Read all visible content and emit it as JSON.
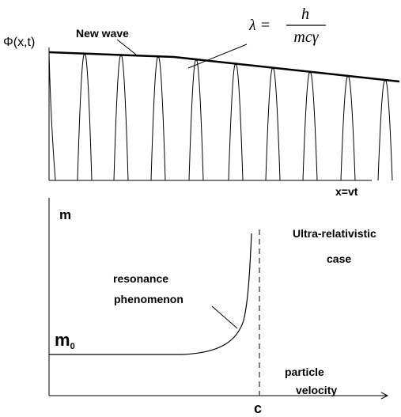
{
  "top_panel": {
    "y_label": "Φ(x,t)",
    "wave_label": "New wave",
    "x_label": "x=vt",
    "formula": {
      "lhs": "λ =",
      "numerator": "h",
      "denominator": "mcγ"
    }
  },
  "bottom_panel": {
    "y_label": "m",
    "rest_mass": {
      "base": "m",
      "subscript": "0"
    },
    "curve_label": [
      "resonance",
      "phenomenon"
    ],
    "case_label": [
      "Ultra-relativistic",
      "case"
    ],
    "x_label": [
      "particle",
      "velocity"
    ],
    "limit_label": "c"
  }
}
